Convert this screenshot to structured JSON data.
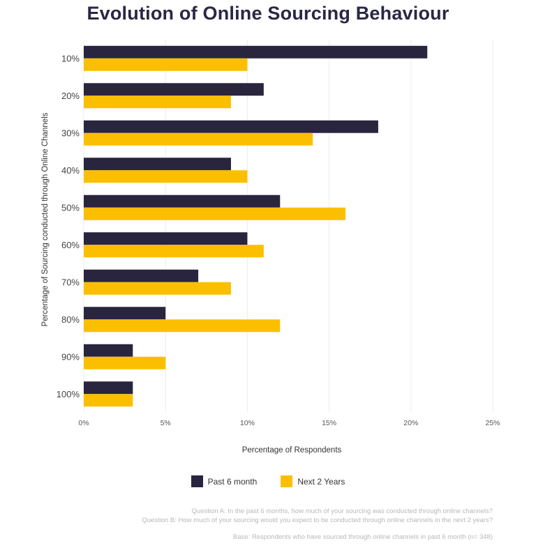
{
  "chart_data": {
    "type": "bar",
    "orientation": "horizontal",
    "title": "Evolution of Online Sourcing Behaviour",
    "xlabel": "Percentage of Respondents",
    "ylabel": "Percentage of Sourcing conducted through Online Channels",
    "categories": [
      "10%",
      "20%",
      "30%",
      "40%",
      "50%",
      "60%",
      "70%",
      "80%",
      "90%",
      "100%"
    ],
    "series": [
      {
        "name": "Past 6 month",
        "values": [
          21,
          11,
          18,
          9,
          12,
          10,
          7,
          5,
          3,
          3
        ],
        "color": "#29253f"
      },
      {
        "name": "Next 2 Years",
        "values": [
          10,
          9,
          14,
          10,
          16,
          11,
          9,
          12,
          5,
          3
        ],
        "color": "#fcbf00"
      }
    ],
    "xlim": [
      0,
      25
    ],
    "xticks": [
      "0%",
      "5%",
      "10%",
      "15%",
      "20%",
      "25%"
    ],
    "grid": true,
    "legend_position": "bottom"
  },
  "notes": {
    "question_a": "Question A: In the past 6 months, how much of your sourcing was conducted through online channels?",
    "question_b": "Question B: How much of your sourcing would you expect to be conducted through online channels in the next 2 years?",
    "base": "Base: Respondents who have sourced through online channels in past 6 month  (n= 348)"
  }
}
